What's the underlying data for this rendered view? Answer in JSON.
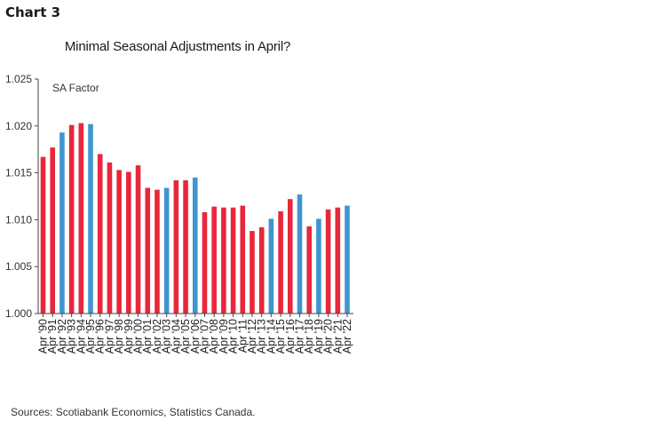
{
  "header": {
    "chart_label": "Chart 3"
  },
  "footer": {
    "source": "Sources: Scotiabank Economics, Statistics Canada."
  },
  "chart_data": {
    "type": "bar",
    "title": "Minimal Seasonal Adjustments in April?",
    "annotation": "SA Factor",
    "xlabel": "",
    "ylabel": "",
    "ylim": [
      1.0,
      1.025
    ],
    "yticks": [
      "1.000",
      "1.005",
      "1.010",
      "1.015",
      "1.020",
      "1.025"
    ],
    "grid": false,
    "legend": "none",
    "colors": {
      "red": "#e8273a",
      "blue": "#3f95cf"
    },
    "categories": [
      "Apr '90",
      "Apr '91",
      "Apr '92",
      "Apr '93",
      "Apr '94",
      "Apr '95",
      "Apr '96",
      "Apr '97",
      "Apr '98",
      "Apr '99",
      "Apr '00",
      "Apr '01",
      "Apr '02",
      "Apr '03",
      "Apr '04",
      "Apr '05",
      "Apr '06",
      "Apr '07",
      "Apr '08",
      "Apr '09",
      "Apr '10",
      "Apr '11",
      "Apr '12",
      "Apr '13",
      "Apr '14",
      "Apr '15",
      "Apr '16",
      "Apr '17",
      "Apr '18",
      "Apr '19",
      "Apr '20",
      "Apr '21",
      "Apr '22"
    ],
    "values": [
      1.0167,
      1.0177,
      1.0193,
      1.0201,
      1.0203,
      1.0202,
      1.017,
      1.0161,
      1.0153,
      1.0151,
      1.0158,
      1.0134,
      1.0132,
      1.0134,
      1.0142,
      1.0142,
      1.0145,
      1.0108,
      1.0114,
      1.0113,
      1.0113,
      1.0115,
      1.0088,
      1.0092,
      1.0101,
      1.0109,
      1.0122,
      1.0127,
      1.0093,
      1.0101,
      1.0111,
      1.0113,
      1.0115
    ],
    "bar_colors": [
      "red",
      "red",
      "blue",
      "red",
      "red",
      "blue",
      "red",
      "red",
      "red",
      "red",
      "red",
      "red",
      "red",
      "blue",
      "red",
      "red",
      "blue",
      "red",
      "red",
      "red",
      "red",
      "red",
      "red",
      "red",
      "blue",
      "red",
      "red",
      "blue",
      "red",
      "blue",
      "red",
      "red",
      "blue"
    ]
  }
}
